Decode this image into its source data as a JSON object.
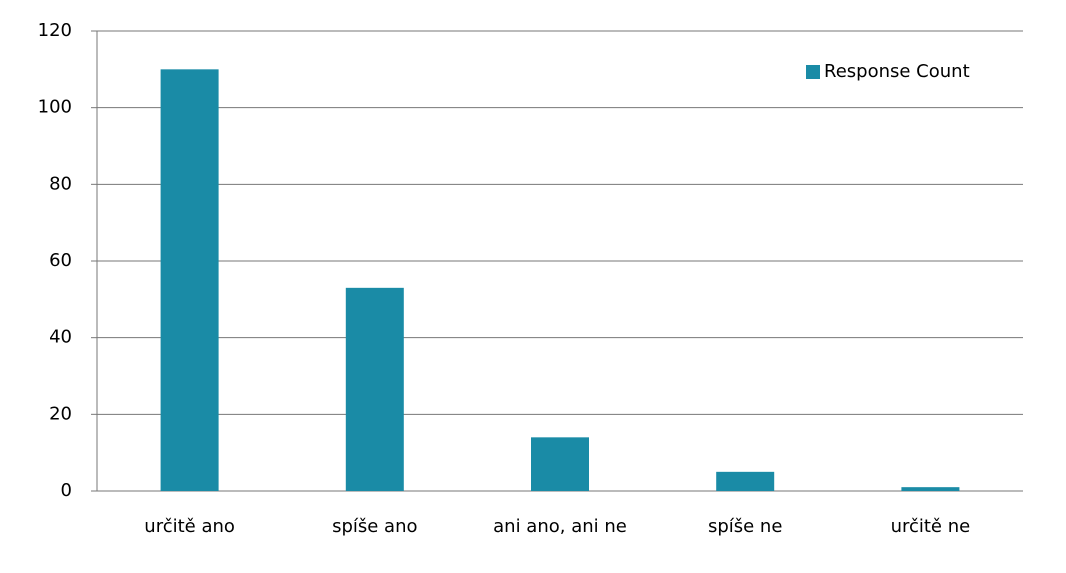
{
  "chart_data": {
    "type": "bar",
    "categories": [
      "určitě ano",
      "spíše ano",
      "ani ano, ani ne",
      "spíše ne",
      "určitě ne"
    ],
    "series": [
      {
        "name": "Response Count",
        "color": "#1a8ba6",
        "values": [
          110,
          53,
          14,
          5,
          1
        ]
      }
    ],
    "ylim": [
      0,
      120
    ],
    "yticks": [
      0,
      20,
      40,
      60,
      80,
      100,
      120
    ],
    "grid": true,
    "legend": "top-right"
  }
}
